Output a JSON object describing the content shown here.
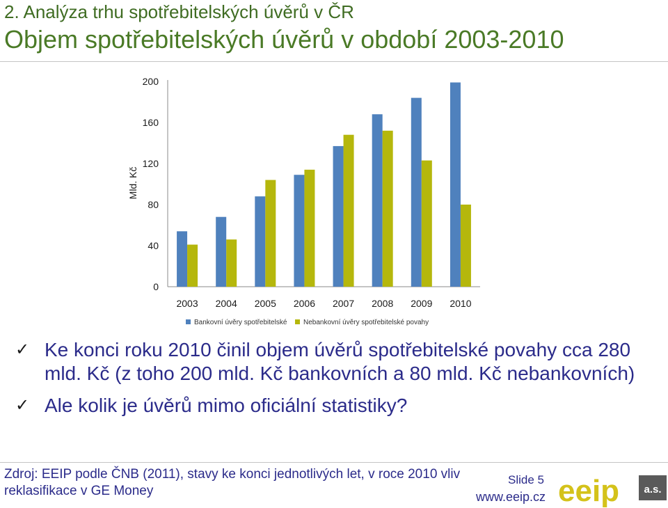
{
  "header": {
    "section_title": "2. Analýza trhu spotřebitelských úvěrů v ČR",
    "main_title": "Objem spotřebitelských úvěrů v období 2003-2010"
  },
  "chart_data": {
    "type": "bar",
    "ylabel": "Mld. Kč",
    "ylim": [
      0,
      200
    ],
    "yticks": [
      "0",
      "40",
      "80",
      "120",
      "160",
      "200"
    ],
    "categories": [
      "2003",
      "2004",
      "2005",
      "2006",
      "2007",
      "2008",
      "2009",
      "2010"
    ],
    "series": [
      {
        "name": "Bankovní úvěry spotřebitelské",
        "color": "#4f81bd",
        "values": [
          54,
          68,
          88,
          109,
          137,
          168,
          184,
          199
        ]
      },
      {
        "name": "Nebankovní úvěry spotřebitelské povahy",
        "color": "#b5b70c",
        "values": [
          41,
          46,
          104,
          114,
          148,
          152,
          123,
          80
        ]
      }
    ],
    "grid": false,
    "legend_position": "bottom"
  },
  "bullets": [
    "Ke konci roku 2010 činil objem úvěrů spotřebitelské povahy cca 280 mld. Kč (z toho 200 mld. Kč bankovních a 80 mld. Kč nebankovních)",
    "Ale kolik je úvěrů mimo oficiální statistiky?"
  ],
  "footer": {
    "source": "Zdroj: EEIP podle ČNB (2011), stavy ke konci jednotlivých let, v roce 2010 vliv reklasifikace v GE Money",
    "slide_label": "Slide 5",
    "website": "www.eeip.cz",
    "logo_text": "eeip",
    "logo_suffix": "a.s."
  },
  "colors": {
    "title_green": "#4a7a26",
    "text_blue": "#2b2b8a",
    "logo_yellow": "#d4c21a",
    "logo_dark": "#5a5a5a"
  }
}
